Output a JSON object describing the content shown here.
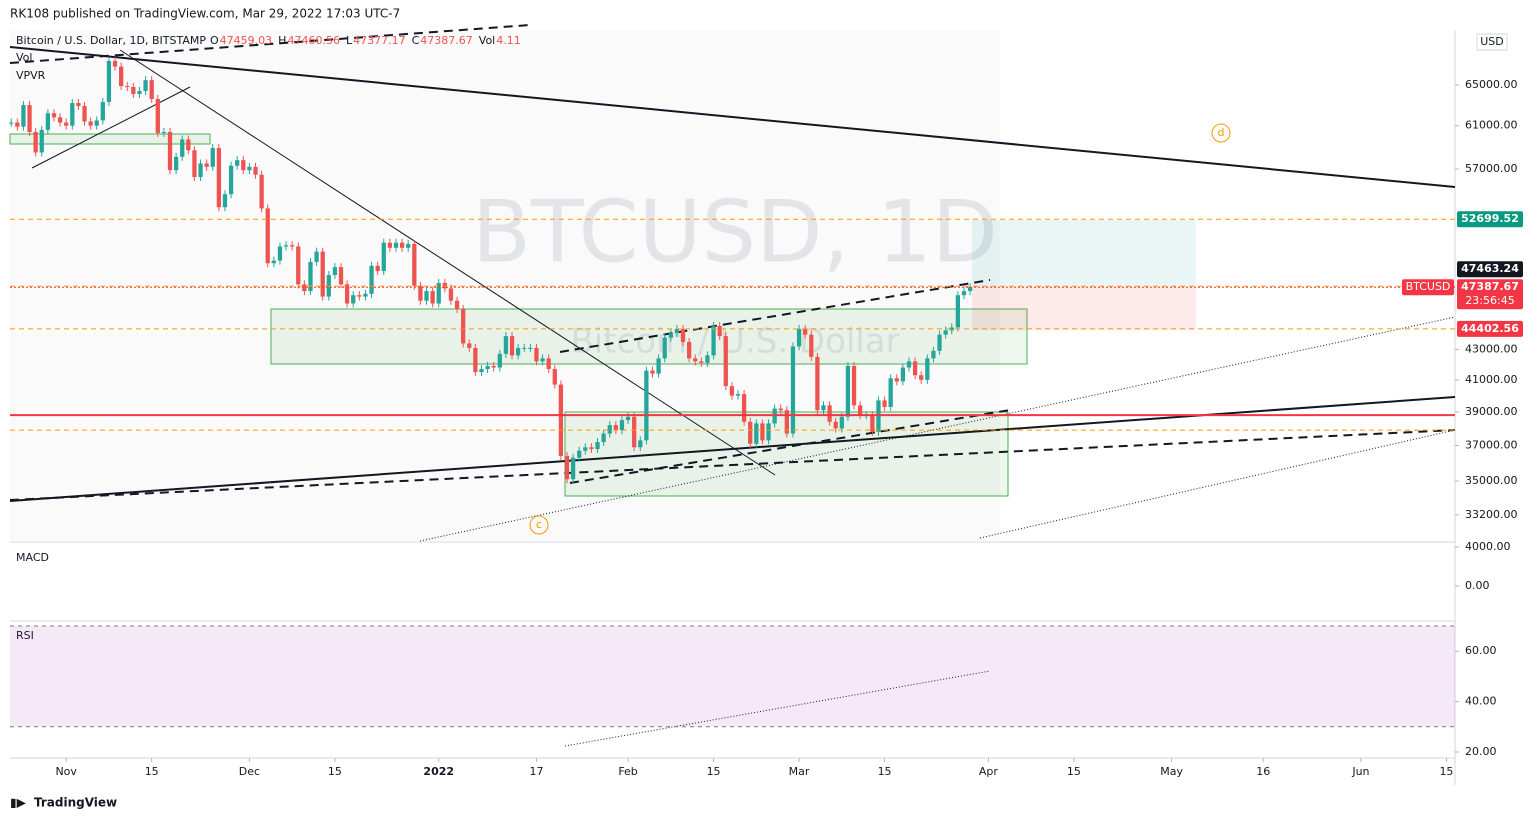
{
  "header": {
    "publisher": "RK108 published on TradingView.com, Mar 29, 2022 17:03 UTC-7",
    "currency": "USD",
    "footer": "TradingView"
  },
  "chart_data": {
    "type": "candlestick",
    "title": "Bitcoin / U.S. Dollar, 1D, BITSTAMP",
    "ohlc_labels": [
      "O",
      "H",
      "L",
      "C",
      "Vol"
    ],
    "ohlc_values": [
      47459.03,
      47460.56,
      47377.17,
      47387.67,
      4.11
    ],
    "watermark": "BTCUSD, 1D",
    "watermark_sub": "Bitcoin / U.S. Dollar",
    "indicators": [
      "Vol",
      "VPVR"
    ],
    "annotations": [
      "d",
      "c"
    ],
    "log_scale": true,
    "ylim": [
      31870,
      70840
    ],
    "yticks": [
      {
        "value": 33200,
        "label": "33200.00"
      },
      {
        "value": 35000,
        "label": "35000.00"
      },
      {
        "value": 37000,
        "label": "37000.00"
      },
      {
        "value": 39000,
        "label": "39000.00"
      },
      {
        "value": 41000,
        "label": "41000.00"
      },
      {
        "value": 43000,
        "label": "43000.00"
      },
      {
        "value": 57000,
        "label": "57000.00"
      },
      {
        "value": 61000,
        "label": "61000.00"
      },
      {
        "value": 65000,
        "label": "65000.00"
      }
    ],
    "xlim": [
      -0.2,
      236.4
    ],
    "xticks": [
      {
        "value": 9,
        "label": "Nov"
      },
      {
        "value": 23,
        "label": "15"
      },
      {
        "value": 39,
        "label": "Dec"
      },
      {
        "value": 53,
        "label": "15"
      },
      {
        "value": 70,
        "label": "2022"
      },
      {
        "value": 86,
        "label": "17"
      },
      {
        "value": 101,
        "label": "Feb"
      },
      {
        "value": 115,
        "label": "15"
      },
      {
        "value": 129,
        "label": "Mar"
      },
      {
        "value": 143,
        "label": "15"
      },
      {
        "value": 160,
        "label": "Apr"
      },
      {
        "value": 174,
        "label": "15"
      },
      {
        "value": 190,
        "label": "May"
      },
      {
        "value": 205,
        "label": "16"
      },
      {
        "value": 221,
        "label": "Jun"
      },
      {
        "value": 235,
        "label": "15"
      }
    ],
    "closes": [
      61300,
      60900,
      63000,
      60400,
      58500,
      60600,
      62200,
      61800,
      61300,
      61000,
      63200,
      62900,
      61400,
      61000,
      61500,
      63300,
      67500,
      66900,
      64900,
      64800,
      64100,
      64400,
      65500,
      63600,
      60300,
      60400,
      56900,
      58100,
      59700,
      58700,
      56300,
      57500,
      57200,
      58900,
      53700,
      54800,
      57300,
      57800,
      56900,
      57200,
      56500,
      53600,
      49200,
      49400,
      50500,
      50600,
      50500,
      47600,
      47100,
      49300,
      50100,
      46700,
      48300,
      48900,
      47600,
      46200,
      46800,
      46700,
      46900,
      49000,
      48600,
      50800,
      50400,
      50800,
      50400,
      50700,
      47500,
      46400,
      47100,
      46200,
      47700,
      47300,
      46400,
      45800,
      43400,
      43100,
      41500,
      41700,
      41900,
      41800,
      42700,
      43900,
      42600,
      43100,
      43100,
      43100,
      42200,
      42400,
      41700,
      40700,
      36400,
      35100,
      36300,
      36700,
      36900,
      36800,
      37200,
      37700,
      38200,
      37900,
      38500,
      38700,
      36900,
      37300,
      41600,
      41400,
      42400,
      43800,
      44100,
      44400,
      43500,
      42400,
      42200,
      42100,
      42600,
      44600,
      43900,
      40600,
      40000,
      40100,
      38400,
      37100,
      38300,
      37300,
      38300,
      39200,
      39100,
      37700,
      43200,
      44400,
      44000,
      42500,
      39100,
      39400,
      38400,
      38000,
      38700,
      41900,
      39400,
      38800,
      38800,
      37800,
      39700,
      39300,
      41100,
      40900,
      41800,
      42200,
      41300,
      41000,
      42400,
      42900,
      44000,
      44300,
      44500,
      46800,
      47100,
      47387.67
    ],
    "up_color": "#26a69a",
    "down_color": "#ef5350",
    "levels": [
      {
        "value": 52699.52,
        "color": "#089981"
      },
      {
        "value": 47463.24,
        "color": "#131722"
      },
      {
        "value": 44402.56,
        "color": "#f23645"
      }
    ],
    "last": {
      "name": "BTCUSD",
      "value": 47387.67,
      "countdown": "23:56:45",
      "color": "#f23645"
    },
    "horizontal_lines": [
      {
        "value": 38800,
        "color": "#f23645"
      }
    ],
    "macd": {
      "name": "MACD",
      "ylim": [
        -3490,
        4410
      ],
      "yticks": [
        {
          "value": 4000,
          "label": "4000.00"
        },
        {
          "value": 0,
          "label": "0.00"
        }
      ]
    },
    "rsi": {
      "name": "RSI",
      "ylim": [
        17.6,
        71.6
      ],
      "band": [
        30,
        70
      ],
      "yticks": [
        {
          "value": 60,
          "label": "60.00"
        },
        {
          "value": 40,
          "label": "40.00"
        },
        {
          "value": 20,
          "label": "20.00"
        }
      ]
    }
  }
}
